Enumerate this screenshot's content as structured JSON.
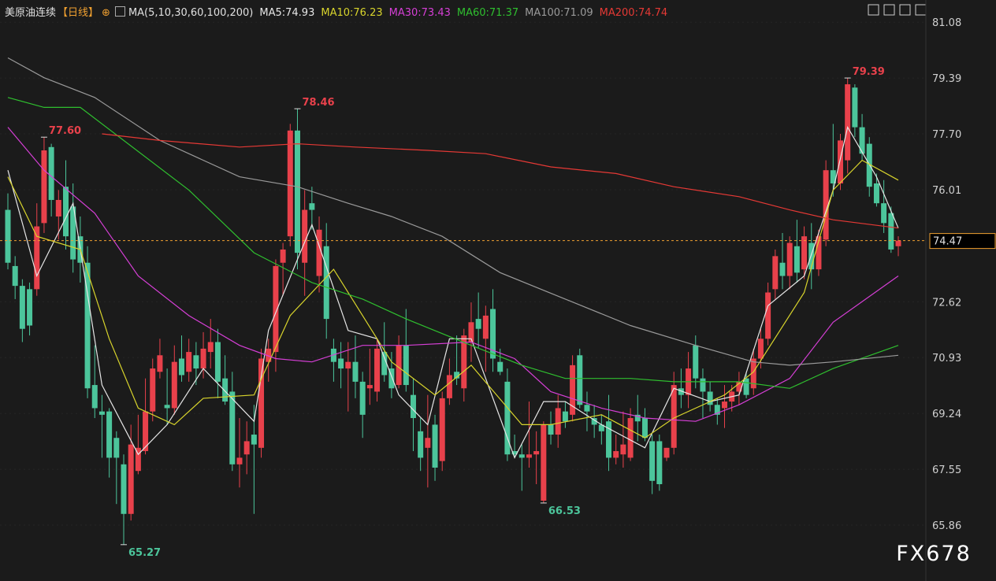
{
  "chart_data": {
    "type": "candlestick",
    "title": "美原油连续",
    "period": "【日线】",
    "indicator": "MA(5,10,30,60,100,200)",
    "watermark": "FX678",
    "up_color": "#e8414b",
    "down_color": "#4cc59b",
    "ylim": [
      64.17,
      81.75
    ],
    "yticks": [
      81.08,
      79.39,
      {
        "value": 77.7,
        "label": "77.70"
      },
      76.01,
      72.62,
      70.93,
      69.24,
      67.55,
      65.86
    ],
    "grid": true,
    "last_price": 74.47,
    "last_price_color": "#f0a030",
    "ohlc": [
      [
        75.4,
        75.9,
        73.6,
        73.8
      ],
      [
        73.7,
        74.0,
        72.7,
        73.1
      ],
      [
        73.1,
        73.3,
        71.4,
        71.8
      ],
      [
        73.0,
        73.2,
        71.6,
        71.9
      ],
      [
        73.0,
        75.6,
        72.8,
        74.9
      ],
      [
        75.0,
        77.6,
        74.7,
        77.2
      ],
      [
        77.3,
        77.4,
        75.2,
        75.7
      ],
      [
        75.2,
        76.0,
        74.5,
        75.7
      ],
      [
        76.1,
        76.9,
        74.2,
        74.6
      ],
      [
        75.5,
        76.2,
        73.5,
        73.9
      ],
      [
        74.6,
        75.2,
        73.2,
        73.8
      ],
      [
        73.8,
        74.3,
        69.7,
        70.0
      ],
      [
        70.1,
        71.3,
        69.1,
        69.4
      ],
      [
        69.3,
        69.8,
        67.9,
        69.2
      ],
      [
        69.3,
        69.4,
        67.3,
        67.9
      ],
      [
        68.5,
        68.7,
        66.5,
        67.9
      ],
      [
        67.7,
        68.0,
        65.27,
        66.2
      ],
      [
        66.2,
        68.9,
        66.0,
        68.3
      ],
      [
        67.5,
        69.2,
        67.4,
        68.2
      ],
      [
        68.1,
        70.3,
        68.0,
        69.3
      ],
      [
        69.3,
        70.9,
        69.0,
        70.6
      ],
      [
        70.5,
        71.5,
        70.3,
        71.0
      ],
      [
        69.5,
        70.6,
        68.9,
        69.4
      ],
      [
        69.4,
        71.3,
        69.2,
        70.8
      ],
      [
        70.9,
        71.6,
        70.2,
        70.4
      ],
      [
        70.5,
        71.5,
        70.2,
        71.1
      ],
      [
        71.0,
        71.4,
        70.1,
        70.6
      ],
      [
        70.6,
        71.7,
        70.3,
        71.2
      ],
      [
        71.1,
        72.1,
        70.6,
        71.4
      ],
      [
        71.4,
        71.8,
        69.7,
        70.2
      ],
      [
        70.3,
        71.0,
        69.5,
        69.6
      ],
      [
        69.9,
        70.5,
        67.5,
        67.7
      ],
      [
        67.7,
        69.1,
        67.0,
        67.9
      ],
      [
        68.0,
        69.0,
        67.4,
        68.4
      ],
      [
        68.6,
        69.5,
        66.2,
        68.3
      ],
      [
        68.2,
        71.2,
        67.9,
        70.9
      ],
      [
        70.8,
        71.5,
        70.2,
        71.2
      ],
      [
        71.1,
        73.9,
        70.5,
        73.7
      ],
      [
        73.8,
        74.4,
        72.8,
        74.2
      ],
      [
        74.6,
        78.0,
        74.3,
        77.8
      ],
      [
        77.8,
        78.46,
        73.6,
        74.1
      ],
      [
        73.8,
        76.0,
        72.8,
        75.4
      ],
      [
        75.6,
        76.1,
        74.8,
        75.4
      ],
      [
        73.4,
        75.2,
        72.9,
        74.8
      ],
      [
        74.3,
        75.0,
        71.5,
        72.1
      ],
      [
        71.2,
        71.5,
        70.2,
        70.8
      ],
      [
        70.9,
        71.4,
        70.0,
        70.6
      ],
      [
        70.6,
        71.4,
        69.3,
        70.8
      ],
      [
        70.8,
        71.6,
        69.7,
        70.2
      ],
      [
        70.2,
        70.5,
        68.5,
        69.2
      ],
      [
        70.0,
        71.2,
        69.5,
        70.1
      ],
      [
        69.9,
        71.5,
        69.6,
        71.2
      ],
      [
        71.1,
        72.0,
        70.2,
        70.4
      ],
      [
        70.6,
        71.1,
        69.7,
        70.0
      ],
      [
        70.1,
        71.6,
        70.0,
        71.3
      ],
      [
        71.3,
        72.4,
        69.9,
        70.1
      ],
      [
        69.8,
        70.3,
        68.1,
        69.1
      ],
      [
        68.7,
        69.1,
        67.5,
        67.9
      ],
      [
        68.2,
        69.8,
        67.0,
        68.5
      ],
      [
        68.9,
        69.2,
        67.2,
        67.6
      ],
      [
        67.8,
        69.9,
        67.5,
        69.7
      ],
      [
        69.7,
        70.9,
        69.5,
        70.4
      ],
      [
        70.5,
        71.6,
        70.1,
        70.3
      ],
      [
        70.0,
        71.8,
        69.6,
        71.6
      ],
      [
        71.4,
        72.6,
        70.8,
        72.0
      ],
      [
        72.1,
        72.9,
        71.2,
        71.8
      ],
      [
        71.5,
        72.5,
        70.5,
        72.2
      ],
      [
        72.4,
        73.0,
        70.5,
        70.9
      ],
      [
        70.8,
        71.2,
        70.4,
        70.5
      ],
      [
        70.2,
        70.6,
        67.8,
        68.0
      ],
      [
        68.1,
        68.6,
        67.9,
        68.0
      ],
      [
        68.0,
        68.3,
        66.9,
        67.9
      ],
      [
        67.9,
        69.6,
        67.6,
        68.0
      ],
      [
        68.0,
        68.7,
        67.1,
        68.1
      ],
      [
        66.6,
        69.0,
        66.53,
        68.9
      ],
      [
        68.9,
        69.3,
        68.3,
        68.6
      ],
      [
        68.6,
        69.8,
        68.2,
        69.4
      ],
      [
        69.3,
        69.6,
        68.8,
        69.0
      ],
      [
        69.2,
        71.0,
        69.0,
        70.7
      ],
      [
        71.0,
        71.2,
        69.4,
        69.5
      ],
      [
        69.5,
        69.9,
        68.7,
        69.3
      ],
      [
        69.1,
        69.5,
        68.5,
        68.9
      ],
      [
        68.9,
        69.2,
        68.3,
        68.7
      ],
      [
        69.0,
        69.8,
        67.5,
        67.9
      ],
      [
        67.9,
        68.6,
        67.7,
        68.1
      ],
      [
        68.0,
        69.3,
        67.6,
        68.3
      ],
      [
        67.9,
        69.4,
        67.8,
        69.1
      ],
      [
        69.2,
        69.8,
        68.4,
        69.0
      ],
      [
        69.1,
        69.4,
        68.4,
        68.5
      ],
      [
        68.4,
        68.6,
        66.8,
        67.2
      ],
      [
        68.4,
        68.6,
        66.9,
        67.1
      ],
      [
        67.9,
        68.2,
        67.8,
        68.2
      ],
      [
        68.2,
        70.5,
        68.0,
        70.1
      ],
      [
        70.0,
        70.6,
        69.4,
        69.8
      ],
      [
        69.8,
        71.1,
        69.4,
        70.6
      ],
      [
        71.3,
        71.6,
        70.0,
        70.3
      ],
      [
        70.3,
        70.6,
        69.1,
        69.9
      ],
      [
        69.9,
        70.2,
        69.3,
        69.5
      ],
      [
        69.5,
        69.7,
        68.9,
        69.2
      ],
      [
        69.4,
        70.1,
        68.8,
        69.6
      ],
      [
        69.6,
        70.1,
        69.3,
        69.9
      ],
      [
        69.9,
        70.5,
        69.5,
        70.2
      ],
      [
        70.3,
        70.5,
        69.7,
        69.8
      ],
      [
        70.0,
        71.2,
        69.8,
        70.9
      ],
      [
        70.9,
        71.8,
        70.6,
        71.5
      ],
      [
        71.5,
        73.2,
        71.3,
        72.9
      ],
      [
        73.0,
        74.2,
        72.7,
        74.0
      ],
      [
        73.8,
        74.7,
        73.0,
        73.4
      ],
      [
        73.4,
        74.6,
        73.0,
        74.4
      ],
      [
        74.3,
        75.1,
        73.2,
        73.5
      ],
      [
        73.6,
        74.9,
        73.3,
        74.6
      ],
      [
        74.4,
        75.0,
        73.0,
        73.6
      ],
      [
        73.6,
        74.8,
        73.4,
        74.6
      ],
      [
        74.5,
        76.9,
        74.3,
        76.6
      ],
      [
        76.6,
        78.0,
        75.8,
        76.2
      ],
      [
        76.2,
        77.7,
        76.0,
        77.5
      ],
      [
        76.9,
        79.39,
        76.5,
        79.2
      ],
      [
        79.1,
        79.2,
        77.6,
        77.9
      ],
      [
        77.9,
        78.3,
        76.9,
        77.1
      ],
      [
        77.4,
        77.6,
        75.8,
        76.1
      ],
      [
        76.2,
        76.5,
        75.5,
        75.6
      ],
      [
        75.6,
        76.3,
        74.7,
        75.0
      ],
      [
        75.3,
        75.5,
        74.1,
        74.2
      ],
      [
        74.3,
        74.6,
        74.0,
        74.47
      ]
    ],
    "annotations": [
      {
        "x": 5,
        "y": 77.6,
        "text": "77.60",
        "position": "above",
        "color": "#e8414b"
      },
      {
        "x": 40,
        "y": 78.46,
        "text": "78.46",
        "position": "above",
        "color": "#e8414b"
      },
      {
        "x": 116,
        "y": 79.39,
        "text": "79.39",
        "position": "above",
        "color": "#e8414b"
      },
      {
        "x": 16,
        "y": 65.27,
        "text": "65.27",
        "position": "below",
        "color": "#4cc59b"
      },
      {
        "x": 74,
        "y": 66.53,
        "text": "66.53",
        "position": "below",
        "color": "#4cc59b"
      }
    ],
    "series": [
      {
        "name": "MA5:74.93",
        "color": "#e6e6e6",
        "x": [
          0,
          4,
          9,
          13,
          18,
          22,
          27,
          34,
          36,
          40,
          42,
          47,
          51,
          54,
          58,
          61,
          64,
          70,
          74,
          77,
          82,
          88,
          92,
          97,
          101,
          105,
          110,
          114,
          116,
          120,
          123
        ],
        "values": [
          76.6,
          73.4,
          75.6,
          70.1,
          68.0,
          68.9,
          70.6,
          69.0,
          71.75,
          73.9,
          74.95,
          71.75,
          71.5,
          69.8,
          68.9,
          71.5,
          71.5,
          67.9,
          69.6,
          69.6,
          68.9,
          68.2,
          70.0,
          69.6,
          69.8,
          72.5,
          73.4,
          76.0,
          77.9,
          76.4,
          74.85
        ]
      },
      {
        "name": "MA10:76.23",
        "color": "#d8d42c",
        "x": [
          0,
          4,
          10,
          14,
          18,
          23,
          27,
          34,
          39,
          45,
          49,
          53,
          59,
          64,
          71,
          75,
          82,
          88,
          92,
          99,
          103,
          110,
          114,
          118,
          123
        ],
        "values": [
          76.4,
          74.6,
          74.2,
          71.5,
          69.4,
          68.9,
          69.7,
          69.8,
          72.2,
          73.6,
          72.2,
          70.8,
          69.8,
          70.7,
          68.9,
          68.9,
          69.2,
          68.5,
          69.1,
          69.8,
          70.5,
          72.9,
          76.0,
          76.9,
          76.3
        ]
      },
      {
        "name": "MA30:73.43",
        "color": "#d63fd6",
        "x": [
          0,
          5,
          12,
          18,
          25,
          32,
          37,
          42,
          49,
          55,
          64,
          70,
          75,
          82,
          88,
          95,
          101,
          108,
          114,
          123
        ],
        "values": [
          77.9,
          76.6,
          75.3,
          73.4,
          72.2,
          71.3,
          70.9,
          70.8,
          71.3,
          71.3,
          71.4,
          70.9,
          69.9,
          69.4,
          69.1,
          69.0,
          69.5,
          70.3,
          72.0,
          73.4
        ]
      },
      {
        "name": "MA60:71.37",
        "color": "#2fbf2f",
        "x": [
          0,
          5,
          10,
          16,
          25,
          34,
          42,
          49,
          55,
          64,
          71,
          77,
          86,
          92,
          101,
          108,
          114,
          123
        ],
        "values": [
          78.8,
          78.5,
          78.5,
          77.5,
          76.0,
          74.1,
          73.2,
          72.7,
          72.1,
          71.3,
          70.7,
          70.3,
          70.3,
          70.2,
          70.2,
          70.0,
          70.6,
          71.3
        ]
      },
      {
        "name": "MA100:71.09",
        "color": "#9a9a9a",
        "x": [
          0,
          5,
          12,
          21,
          32,
          40,
          47,
          53,
          60,
          68,
          77,
          86,
          95,
          103,
          108,
          114,
          123
        ],
        "values": [
          80.0,
          79.4,
          78.8,
          77.5,
          76.4,
          76.1,
          75.6,
          75.2,
          74.6,
          73.5,
          72.7,
          71.9,
          71.3,
          70.8,
          70.7,
          70.8,
          71.0
        ]
      },
      {
        "name": "MA200:74.74",
        "color": "#e53935",
        "x": [
          13,
          21,
          32,
          40,
          48,
          58,
          66,
          75,
          84,
          92,
          101,
          108,
          114,
          123
        ],
        "values": [
          77.7,
          77.5,
          77.3,
          77.4,
          77.3,
          77.2,
          77.1,
          76.7,
          76.5,
          76.1,
          75.8,
          75.4,
          75.1,
          74.85
        ]
      }
    ]
  }
}
